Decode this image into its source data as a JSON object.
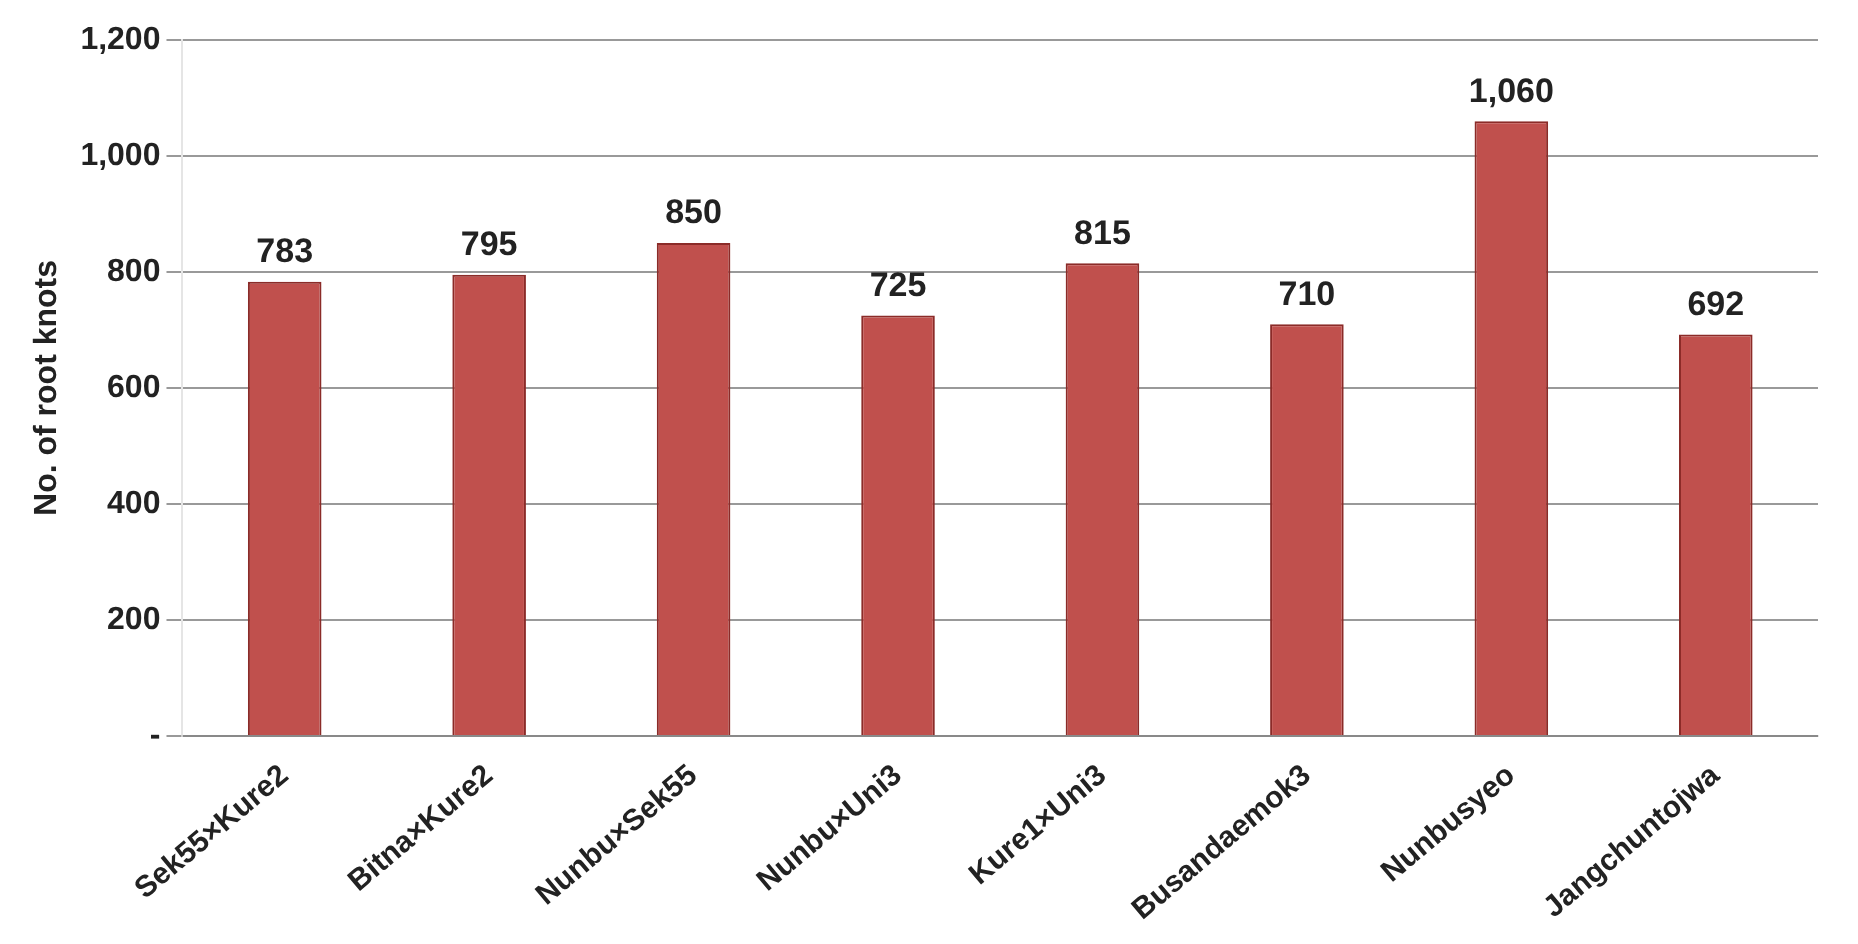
{
  "chart_data": {
    "type": "bar",
    "ylabel": "No. of root knots",
    "categories": [
      "Sek55×Kure2",
      "Bitna×Kure2",
      "Nunbu×Sek55",
      "Nunbu×Uni3",
      "Kure1×Uni3",
      "Busandaemok3",
      "Nunbusyeo",
      "Jangchuntojwa"
    ],
    "values": [
      783,
      795,
      850,
      725,
      815,
      710,
      1060,
      692
    ],
    "value_labels": [
      "783",
      "795",
      "850",
      "725",
      "815",
      "710",
      "1,060",
      "692"
    ],
    "color": "#c0504d",
    "ylim": [
      0,
      1200
    ],
    "yticks": [
      {
        "value": 0,
        "label": "-"
      },
      200,
      400,
      600,
      800,
      {
        "value": 1000,
        "label": "1,000"
      },
      {
        "value": 1200,
        "label": "1,200"
      }
    ],
    "grid": "y",
    "legend": false
  }
}
